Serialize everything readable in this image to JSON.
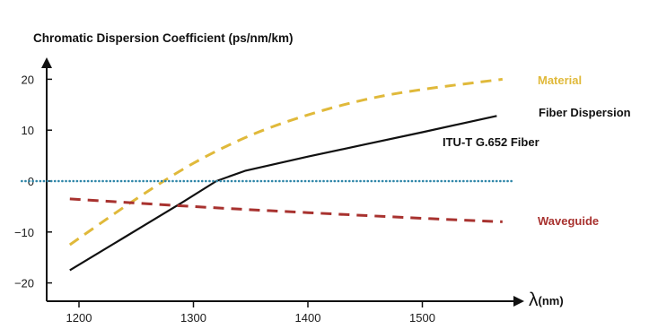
{
  "chart_data": {
    "type": "line",
    "title": "",
    "ylabel": "Chromatic Dispersion Coefficient (ps/nm/km)",
    "xlabel_symbol": "λ",
    "xlabel_unit": "(nm)",
    "xlim": [
      1150,
      1580
    ],
    "ylim": [
      -22,
      23
    ],
    "xticks": [
      1200,
      1300,
      1400,
      1500
    ],
    "yticks": [
      20,
      10,
      0,
      -10,
      -20
    ],
    "xtick_labels": [
      "1200",
      "1300",
      "1400",
      "1500"
    ],
    "ytick_labels": [
      "20",
      "10",
      "0",
      "−10",
      "−20"
    ],
    "grid": false,
    "annotation": "ITU-T G.652 Fiber",
    "series": [
      {
        "name": "Material",
        "color": "#e0b93a",
        "style": "dashed",
        "x": [
          1192,
          1250,
          1300,
          1350,
          1400,
          1450,
          1500,
          1570
        ],
        "y": [
          -12.5,
          -3.5,
          3.5,
          9.0,
          13.0,
          16.0,
          18.0,
          20.0
        ]
      },
      {
        "name": "Fiber Dispersion",
        "color": "#111111",
        "style": "solid",
        "x": [
          1192,
          1240,
          1290,
          1320,
          1345,
          1400,
          1450,
          1500,
          1565
        ],
        "y": [
          -17.5,
          -11.0,
          -4.2,
          0,
          2.0,
          4.8,
          7.2,
          9.6,
          12.8
        ]
      },
      {
        "name": "Waveguide",
        "color": "#a8322f",
        "style": "dashed",
        "x": [
          1192,
          1300,
          1400,
          1500,
          1570
        ],
        "y": [
          -3.5,
          -5.0,
          -6.2,
          -7.3,
          -8.0
        ]
      },
      {
        "name": "",
        "color": "#2f86a8",
        "style": "dotted",
        "x": [
          1150,
          1580
        ],
        "y": [
          0,
          0
        ]
      }
    ]
  }
}
